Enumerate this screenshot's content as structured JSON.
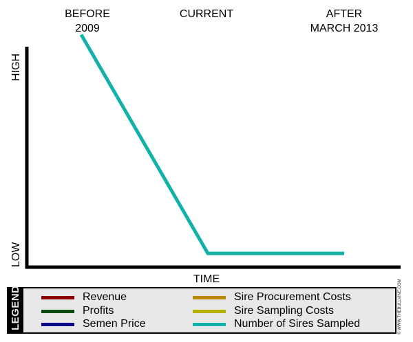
{
  "chart_data": {
    "type": "line",
    "x_categories": [
      {
        "line1": "BEFORE",
        "line2": "2009"
      },
      {
        "line1": "CURRENT",
        "line2": ""
      },
      {
        "line1": "AFTER",
        "line2": "MARCH 2013"
      }
    ],
    "xlabel": "TIME",
    "y_high_label": "HIGH",
    "y_low_label": "LOW",
    "ylim": [
      0,
      1
    ],
    "series": [
      {
        "name": "Number of Sires Sampled",
        "color": "#13b1a8",
        "points": [
          {
            "x": "BEFORE 2009",
            "y": 0.97
          },
          {
            "x": "CURRENT",
            "y": 0.06
          },
          {
            "x": "AFTER MARCH 2013",
            "y": 0.06
          }
        ]
      }
    ],
    "legend": {
      "title": "LEGEND",
      "items": [
        {
          "label": "Revenue",
          "color": "#8b0000"
        },
        {
          "label": "Profits",
          "color": "#0b4a10"
        },
        {
          "label": "Semen Price",
          "color": "#0a0a8a"
        },
        {
          "label": "Sire Procurement Costs",
          "color": "#b8860b"
        },
        {
          "label": "Sire Sampling Costs",
          "color": "#b5b000"
        },
        {
          "label": "Number of Sires Sampled",
          "color": "#13b1a8"
        }
      ]
    }
  },
  "watermark": "© WWW.THEBULLVINE.COM"
}
